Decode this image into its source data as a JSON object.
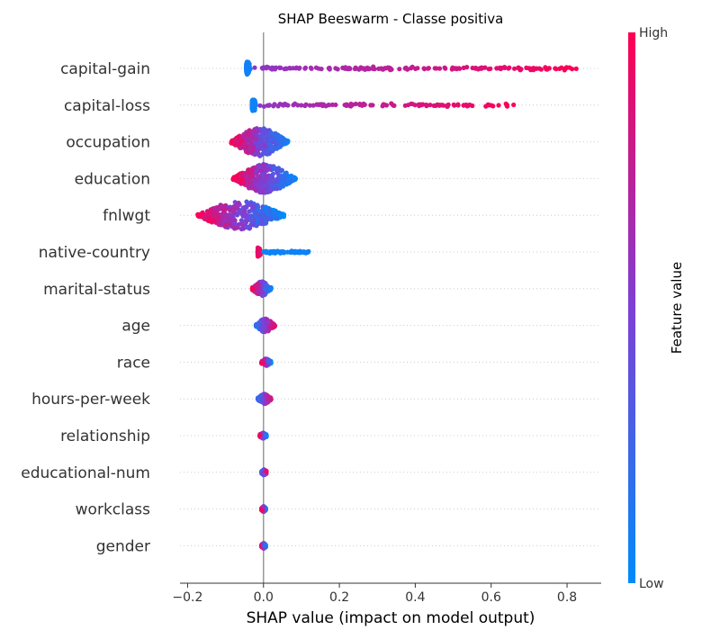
{
  "chart_data": {
    "type": "scatter",
    "subtype": "beeswarm",
    "title": "SHAP Beeswarm - Classe positiva",
    "xlabel": "SHAP value (impact on model output)",
    "xlim": [
      -0.22,
      0.89
    ],
    "xticks": [
      -0.2,
      0.0,
      0.2,
      0.4,
      0.6,
      0.8
    ],
    "xtick_labels": [
      "−0.2",
      "0.0",
      "0.2",
      "0.4",
      "0.6",
      "0.8"
    ],
    "zero_line": 0,
    "grid": false,
    "colorbar": {
      "label": "Feature value",
      "high_label": "High",
      "low_label": "Low",
      "low_color": "#008bfb",
      "high_color": "#ff0052",
      "placement": "right"
    },
    "features": [
      {
        "name": "capital-gain",
        "min": -0.045,
        "max": 0.84
      },
      {
        "name": "capital-loss",
        "min": -0.03,
        "max": 0.665
      },
      {
        "name": "occupation",
        "min": -0.085,
        "max": 0.065
      },
      {
        "name": "education",
        "min": -0.08,
        "max": 0.085
      },
      {
        "name": "fnlwgt",
        "min": -0.175,
        "max": 0.055
      },
      {
        "name": "native-country",
        "min": -0.015,
        "max": 0.12
      },
      {
        "name": "marital-status",
        "min": -0.03,
        "max": 0.02
      },
      {
        "name": "age",
        "min": -0.02,
        "max": 0.03
      },
      {
        "name": "race",
        "min": -0.005,
        "max": 0.02
      },
      {
        "name": "hours-per-week",
        "min": -0.015,
        "max": 0.02
      },
      {
        "name": "relationship",
        "min": -0.01,
        "max": 0.008
      },
      {
        "name": "educational-num",
        "min": -0.005,
        "max": 0.008
      },
      {
        "name": "workclass",
        "min": -0.005,
        "max": 0.006
      },
      {
        "name": "gender",
        "min": -0.005,
        "max": 0.006
      }
    ]
  }
}
